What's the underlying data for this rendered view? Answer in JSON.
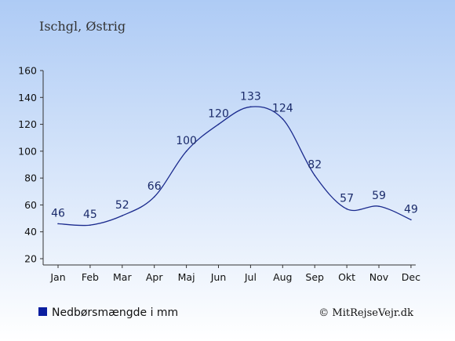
{
  "title": "Ischgl, Østrig",
  "legend": {
    "label": "Nedbørsmængde i mm",
    "color": "#0a1ea0"
  },
  "copyright": "© MitRejseVejr.dk",
  "colors": {
    "background_top": "#aecbf5",
    "background_bottom": "#ffffff",
    "line": "#1b2b8e",
    "axis": "#333333"
  },
  "chart_data": {
    "type": "line",
    "categories": [
      "Jan",
      "Feb",
      "Mar",
      "Apr",
      "Maj",
      "Jun",
      "Jul",
      "Aug",
      "Sep",
      "Okt",
      "Nov",
      "Dec"
    ],
    "series": [
      {
        "values": [
          46,
          45,
          52,
          66,
          100,
          120,
          133,
          124,
          82,
          57,
          59,
          49
        ]
      }
    ],
    "yticks": [
      20,
      40,
      60,
      80,
      100,
      120,
      140,
      160
    ],
    "ylim": [
      20,
      160
    ],
    "xlabel": "",
    "ylabel": "",
    "grid": false,
    "legend_position": "bottom-left",
    "data_labels": true
  }
}
